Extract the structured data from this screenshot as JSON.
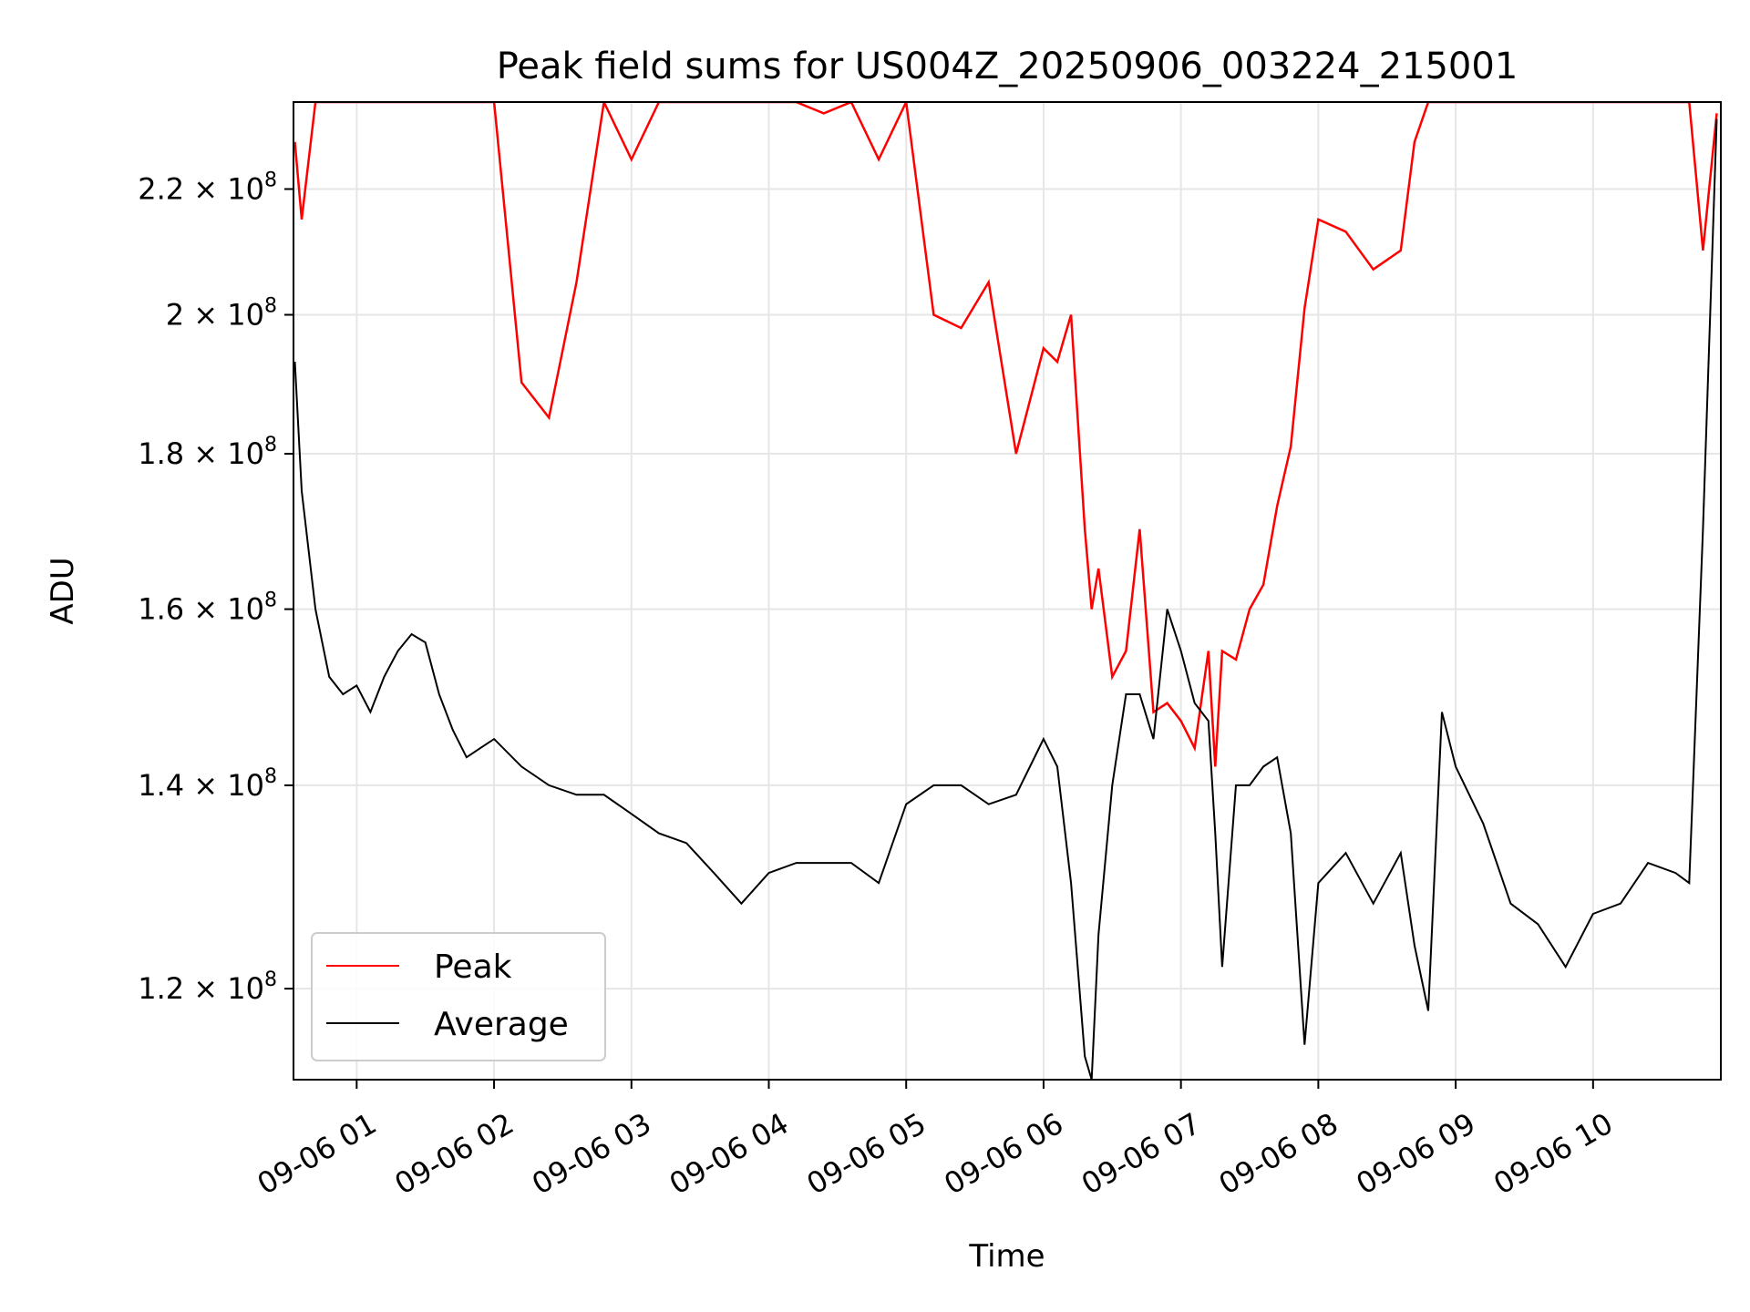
{
  "chart_data": {
    "type": "line",
    "title": "Peak field sums for US004Z_20250906_003224_215001",
    "xlabel": "Time",
    "ylabel": "ADU",
    "x_tick_labels": [
      "09-06 01",
      "09-06 02",
      "09-06 03",
      "09-06 04",
      "09-06 05",
      "09-06 06",
      "09-06 07",
      "09-06 08",
      "09-06 09",
      "09-06 10"
    ],
    "y_tick_labels": [
      "1.2 × 10^8",
      "1.4 × 10^8",
      "1.6 × 10^8",
      "1.8 × 10^8",
      "2 × 10^8",
      "2.2 × 10^8"
    ],
    "y_ticks": [
      120000000,
      140000000,
      160000000,
      180000000,
      200000000,
      220000000
    ],
    "ylim": [
      112000000,
      235000000
    ],
    "xlim_hours": [
      0.54,
      10.93
    ],
    "y_scale": "log",
    "grid": true,
    "legend_position": "lower-left",
    "series": [
      {
        "name": "Peak",
        "color": "#ff0000",
        "x_hours": [
          0.55,
          0.6,
          0.7,
          0.8,
          0.9,
          1.0,
          1.1,
          1.2,
          1.3,
          1.4,
          1.5,
          1.6,
          1.7,
          1.8,
          1.9,
          2.0,
          2.2,
          2.4,
          2.6,
          2.8,
          3.0,
          3.2,
          3.4,
          3.6,
          3.8,
          4.0,
          4.2,
          4.4,
          4.6,
          4.8,
          5.0,
          5.2,
          5.4,
          5.6,
          5.8,
          6.0,
          6.1,
          6.2,
          6.3,
          6.35,
          6.4,
          6.5,
          6.6,
          6.7,
          6.8,
          6.9,
          7.0,
          7.1,
          7.2,
          7.25,
          7.3,
          7.4,
          7.5,
          7.6,
          7.7,
          7.8,
          7.9,
          8.0,
          8.2,
          8.4,
          8.6,
          8.7,
          8.8,
          8.9,
          9.0,
          9.2,
          9.4,
          9.6,
          9.8,
          10.0,
          10.2,
          10.4,
          10.6,
          10.7,
          10.8,
          10.9
        ],
        "y": [
          228000000,
          215000000,
          235000000,
          235000000,
          235000000,
          235000000,
          235000000,
          235000000,
          235000000,
          235000000,
          235000000,
          235000000,
          235000000,
          235000000,
          235000000,
          235000000,
          190000000,
          185000000,
          205000000,
          235000000,
          225000000,
          235000000,
          235000000,
          235000000,
          235000000,
          235000000,
          235000000,
          233000000,
          235000000,
          225000000,
          235000000,
          200000000,
          198000000,
          205000000,
          180000000,
          195000000,
          193000000,
          200000000,
          170000000,
          160000000,
          165000000,
          152000000,
          155000000,
          170000000,
          148000000,
          149000000,
          147000000,
          144000000,
          155000000,
          142000000,
          155000000,
          154000000,
          160000000,
          163000000,
          173000000,
          181000000,
          201000000,
          215000000,
          213000000,
          207000000,
          210000000,
          228000000,
          235000000,
          235000000,
          235000000,
          235000000,
          235000000,
          235000000,
          235000000,
          235000000,
          235000000,
          235000000,
          235000000,
          235000000,
          210000000,
          233000000
        ]
      },
      {
        "name": "Average",
        "color": "#000000",
        "x_hours": [
          0.55,
          0.6,
          0.7,
          0.8,
          0.9,
          1.0,
          1.1,
          1.2,
          1.3,
          1.4,
          1.5,
          1.6,
          1.7,
          1.8,
          1.9,
          2.0,
          2.2,
          2.4,
          2.6,
          2.8,
          3.0,
          3.2,
          3.4,
          3.6,
          3.8,
          4.0,
          4.2,
          4.4,
          4.6,
          4.8,
          5.0,
          5.2,
          5.4,
          5.6,
          5.8,
          6.0,
          6.1,
          6.2,
          6.3,
          6.35,
          6.4,
          6.5,
          6.6,
          6.7,
          6.8,
          6.9,
          7.0,
          7.1,
          7.2,
          7.25,
          7.3,
          7.4,
          7.5,
          7.6,
          7.7,
          7.8,
          7.9,
          8.0,
          8.2,
          8.4,
          8.6,
          8.7,
          8.8,
          8.9,
          9.0,
          9.2,
          9.4,
          9.6,
          9.8,
          10.0,
          10.2,
          10.4,
          10.6,
          10.7,
          10.8,
          10.9
        ],
        "y": [
          193000000,
          175000000,
          160000000,
          152000000,
          150000000,
          151000000,
          148000000,
          152000000,
          155000000,
          157000000,
          156000000,
          150000000,
          146000000,
          143000000,
          144000000,
          145000000,
          142000000,
          140000000,
          139000000,
          139000000,
          137000000,
          135000000,
          134000000,
          131000000,
          128000000,
          131000000,
          132000000,
          132000000,
          132000000,
          130000000,
          138000000,
          140000000,
          140000000,
          138000000,
          139000000,
          145000000,
          142000000,
          130000000,
          114000000,
          112000000,
          125000000,
          140000000,
          150000000,
          150000000,
          145000000,
          160000000,
          155000000,
          149000000,
          147000000,
          135000000,
          122000000,
          140000000,
          140000000,
          142000000,
          143000000,
          135000000,
          115000000,
          130000000,
          133000000,
          128000000,
          133000000,
          124000000,
          118000000,
          148000000,
          142000000,
          136000000,
          128000000,
          126000000,
          122000000,
          127000000,
          128000000,
          132000000,
          131000000,
          130000000,
          170000000,
          232000000
        ]
      }
    ]
  }
}
